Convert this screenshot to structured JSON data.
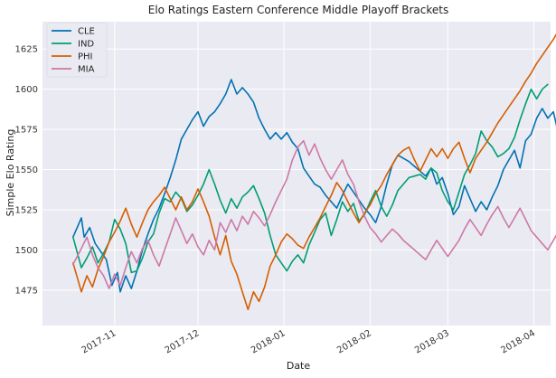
{
  "chart_data": {
    "type": "line",
    "title": "Elo Ratings Eastern Conference Middle Playoff Brackets",
    "xlabel": "Date",
    "ylabel": "Simple Elo Rating",
    "ylim": [
      1453,
      1642
    ],
    "yticks": [
      1475,
      1500,
      1525,
      1550,
      1575,
      1600,
      1625
    ],
    "x_range_days": [
      -11,
      172
    ],
    "x_start_date": "2017-10-17",
    "xticks": [
      {
        "label": "2017-11",
        "day": 15
      },
      {
        "label": "2017-12",
        "day": 45
      },
      {
        "label": "2018-01",
        "day": 76
      },
      {
        "label": "2018-02",
        "day": 107
      },
      {
        "label": "2018-03",
        "day": 135
      },
      {
        "label": "2018-04",
        "day": 166
      }
    ],
    "grid": true,
    "legend_position": "top-left",
    "series": [
      {
        "name": "CLE",
        "color": "#0072b2",
        "days": [
          0,
          3,
          4,
          6,
          8,
          10,
          12,
          14,
          16,
          17,
          19,
          21,
          23,
          25,
          27,
          29,
          31,
          33,
          35,
          37,
          39,
          41,
          43,
          45,
          47,
          49,
          51,
          53,
          55,
          57,
          59,
          61,
          63,
          65,
          67,
          69,
          71,
          73,
          75,
          77,
          79,
          81,
          83,
          85,
          87,
          89,
          91,
          93,
          95,
          97,
          99,
          101,
          103,
          105,
          107,
          109,
          111,
          113,
          115,
          117,
          119,
          121,
          123,
          125,
          127,
          129,
          131,
          133,
          135,
          137,
          139,
          141,
          143,
          145,
          147,
          149,
          151,
          153,
          155,
          157,
          159,
          161,
          163,
          165,
          167,
          169,
          171,
          173,
          175
        ],
        "values": [
          1508,
          1520,
          1508,
          1514,
          1504,
          1499,
          1494,
          1478,
          1486,
          1474,
          1484,
          1476,
          1487,
          1500,
          1510,
          1519,
          1526,
          1535,
          1545,
          1556,
          1569,
          1575,
          1581,
          1586,
          1577,
          1583,
          1586,
          1591,
          1597,
          1606,
          1597,
          1601,
          1597,
          1592,
          1582,
          1575,
          1569,
          1573,
          1569,
          1573,
          1567,
          1563,
          1551,
          1546,
          1541,
          1539,
          1534,
          1530,
          1526,
          1534,
          1541,
          1536,
          1531,
          1526,
          1522,
          1517,
          1527,
          1541,
          1553,
          1559,
          1557,
          1555,
          1552,
          1549,
          1546,
          1551,
          1541,
          1545,
          1535,
          1522,
          1527,
          1540,
          1532,
          1524,
          1530,
          1525,
          1533,
          1540,
          1550,
          1556,
          1562,
          1551,
          1568,
          1572,
          1582,
          1588,
          1582,
          1586,
          1571
        ]
      },
      {
        "name": "IND",
        "color": "#009e73",
        "days": [
          0,
          3,
          5,
          7,
          9,
          11,
          13,
          15,
          17,
          19,
          21,
          23,
          25,
          27,
          29,
          31,
          33,
          35,
          37,
          39,
          41,
          43,
          45,
          47,
          49,
          51,
          53,
          55,
          57,
          59,
          61,
          63,
          65,
          67,
          69,
          71,
          73,
          75,
          77,
          79,
          81,
          83,
          85,
          87,
          89,
          91,
          93,
          95,
          97,
          99,
          101,
          103,
          105,
          107,
          109,
          111,
          113,
          115,
          117,
          119,
          121,
          123,
          125,
          127,
          129,
          131,
          133,
          135,
          137,
          139,
          141,
          143,
          145,
          147,
          149,
          151,
          153,
          155,
          157,
          159,
          161,
          163,
          165,
          167,
          169,
          171
        ],
        "values": [
          1508,
          1489,
          1495,
          1502,
          1492,
          1498,
          1505,
          1519,
          1513,
          1504,
          1486,
          1487,
          1495,
          1505,
          1510,
          1523,
          1532,
          1530,
          1536,
          1532,
          1524,
          1528,
          1534,
          1541,
          1550,
          1541,
          1531,
          1523,
          1532,
          1526,
          1533,
          1536,
          1540,
          1532,
          1523,
          1509,
          1497,
          1492,
          1487,
          1493,
          1497,
          1492,
          1503,
          1511,
          1519,
          1523,
          1509,
          1519,
          1530,
          1524,
          1529,
          1518,
          1522,
          1530,
          1537,
          1527,
          1521,
          1528,
          1537,
          1541,
          1545,
          1546,
          1547,
          1544,
          1551,
          1548,
          1537,
          1530,
          1525,
          1536,
          1547,
          1553,
          1560,
          1574,
          1568,
          1564,
          1558,
          1560,
          1563,
          1570,
          1581,
          1591,
          1600,
          1594,
          1600,
          1603
        ]
      },
      {
        "name": "PHI",
        "color": "#d55e00",
        "days": [
          0,
          3,
          5,
          7,
          9,
          11,
          13,
          15,
          17,
          19,
          21,
          23,
          25,
          27,
          29,
          31,
          33,
          35,
          37,
          39,
          41,
          43,
          45,
          47,
          49,
          51,
          53,
          55,
          57,
          59,
          61,
          63,
          65,
          67,
          69,
          71,
          73,
          75,
          77,
          79,
          81,
          83,
          85,
          87,
          89,
          91,
          93,
          95,
          97,
          99,
          101,
          103,
          105,
          107,
          109,
          111,
          113,
          115,
          117,
          119,
          121,
          123,
          125,
          127,
          129,
          131,
          133,
          135,
          137,
          139,
          141,
          143,
          145,
          147,
          149,
          151,
          153,
          155,
          157,
          159,
          161,
          163,
          165,
          167,
          169,
          171,
          173,
          175
        ],
        "values": [
          1492,
          1474,
          1484,
          1477,
          1488,
          1496,
          1505,
          1511,
          1518,
          1526,
          1516,
          1508,
          1517,
          1525,
          1530,
          1534,
          1539,
          1532,
          1525,
          1533,
          1525,
          1530,
          1538,
          1530,
          1521,
          1508,
          1497,
          1509,
          1493,
          1485,
          1474,
          1463,
          1474,
          1468,
          1477,
          1490,
          1497,
          1505,
          1510,
          1507,
          1503,
          1501,
          1508,
          1514,
          1520,
          1527,
          1534,
          1542,
          1537,
          1530,
          1523,
          1517,
          1523,
          1528,
          1535,
          1540,
          1547,
          1553,
          1559,
          1562,
          1564,
          1556,
          1549,
          1556,
          1563,
          1558,
          1563,
          1557,
          1563,
          1567,
          1557,
          1548,
          1557,
          1562,
          1567,
          1573,
          1579,
          1584,
          1589,
          1594,
          1599,
          1605,
          1610,
          1616,
          1621,
          1626,
          1631,
          1637
        ]
      },
      {
        "name": "MIA",
        "color": "#cc79a7",
        "days": [
          0,
          3,
          5,
          7,
          9,
          11,
          13,
          15,
          17,
          19,
          21,
          23,
          25,
          27,
          29,
          31,
          33,
          35,
          37,
          39,
          41,
          43,
          45,
          47,
          49,
          51,
          53,
          55,
          57,
          59,
          61,
          63,
          65,
          67,
          69,
          71,
          73,
          75,
          77,
          79,
          81,
          83,
          85,
          87,
          89,
          91,
          93,
          95,
          97,
          99,
          101,
          103,
          105,
          107,
          109,
          111,
          113,
          115,
          117,
          119,
          121,
          123,
          125,
          127,
          129,
          131,
          133,
          135,
          137,
          139,
          141,
          143,
          145,
          147,
          149,
          151,
          153,
          155,
          157,
          159,
          161,
          163,
          165,
          167,
          169,
          171,
          173,
          175
        ],
        "values": [
          1491,
          1501,
          1508,
          1497,
          1489,
          1484,
          1476,
          1485,
          1478,
          1489,
          1499,
          1492,
          1501,
          1506,
          1497,
          1490,
          1500,
          1510,
          1520,
          1512,
          1504,
          1510,
          1502,
          1497,
          1506,
          1500,
          1517,
          1511,
          1519,
          1512,
          1521,
          1516,
          1524,
          1520,
          1515,
          1522,
          1530,
          1537,
          1544,
          1556,
          1564,
          1568,
          1559,
          1566,
          1557,
          1550,
          1544,
          1550,
          1556,
          1547,
          1541,
          1530,
          1521,
          1514,
          1510,
          1505,
          1509,
          1513,
          1510,
          1506,
          1503,
          1500,
          1497,
          1494,
          1500,
          1506,
          1501,
          1496,
          1501,
          1506,
          1513,
          1519,
          1514,
          1509,
          1516,
          1522,
          1527,
          1520,
          1514,
          1520,
          1526,
          1519,
          1512,
          1508,
          1504,
          1500,
          1506,
          1512
        ]
      }
    ]
  }
}
